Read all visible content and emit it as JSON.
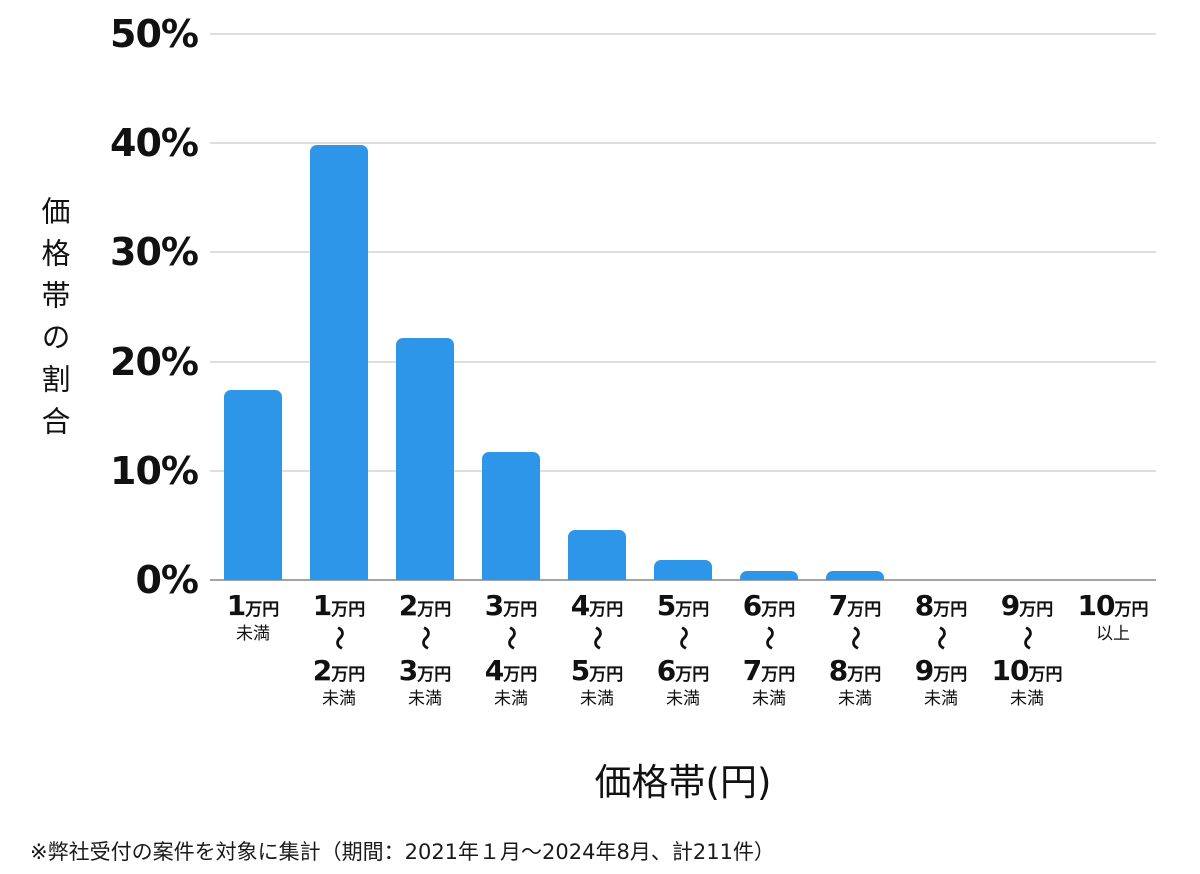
{
  "chart_data": {
    "type": "bar",
    "title": "",
    "xlabel": "価格帯(円)",
    "ylabel": "価格帯の割合",
    "ylim": [
      0,
      50
    ],
    "yticks": [
      50,
      40,
      30,
      20,
      10,
      0
    ],
    "ytick_suffix": "%",
    "grid": "horizontal-light-gray",
    "legend": "none",
    "bar_color": "#2d96e8",
    "categories": [
      {
        "label": "1万円未満",
        "from_num": "1",
        "from_unit": "万円",
        "tilde": "",
        "to_num": "",
        "to_unit": "",
        "qualifier": "未満"
      },
      {
        "label": "1万円〜2万円未満",
        "from_num": "1",
        "from_unit": "万円",
        "tilde": "〜",
        "to_num": "2",
        "to_unit": "万円",
        "qualifier": "未満"
      },
      {
        "label": "2万円〜3万円未満",
        "from_num": "2",
        "from_unit": "万円",
        "tilde": "〜",
        "to_num": "3",
        "to_unit": "万円",
        "qualifier": "未満"
      },
      {
        "label": "3万円〜4万円未満",
        "from_num": "3",
        "from_unit": "万円",
        "tilde": "〜",
        "to_num": "4",
        "to_unit": "万円",
        "qualifier": "未満"
      },
      {
        "label": "4万円〜5万円未満",
        "from_num": "4",
        "from_unit": "万円",
        "tilde": "〜",
        "to_num": "5",
        "to_unit": "万円",
        "qualifier": "未満"
      },
      {
        "label": "5万円〜6万円未満",
        "from_num": "5",
        "from_unit": "万円",
        "tilde": "〜",
        "to_num": "6",
        "to_unit": "万円",
        "qualifier": "未満"
      },
      {
        "label": "6万円〜7万円未満",
        "from_num": "6",
        "from_unit": "万円",
        "tilde": "〜",
        "to_num": "7",
        "to_unit": "万円",
        "qualifier": "未満"
      },
      {
        "label": "7万円〜8万円未満",
        "from_num": "7",
        "from_unit": "万円",
        "tilde": "〜",
        "to_num": "8",
        "to_unit": "万円",
        "qualifier": "未満"
      },
      {
        "label": "8万円〜9万円未満",
        "from_num": "8",
        "from_unit": "万円",
        "tilde": "〜",
        "to_num": "9",
        "to_unit": "万円",
        "qualifier": "未満"
      },
      {
        "label": "9万円〜10万円未満",
        "from_num": "9",
        "from_unit": "万円",
        "tilde": "〜",
        "to_num": "10",
        "to_unit": "万円",
        "qualifier": "未満"
      },
      {
        "label": "10万円以上",
        "from_num": "10",
        "from_unit": "万円",
        "tilde": "",
        "to_num": "",
        "to_unit": "",
        "qualifier": "以上"
      }
    ],
    "values": [
      17.4,
      39.8,
      22.2,
      11.7,
      4.6,
      1.8,
      0.8,
      0.8,
      0,
      0,
      0
    ]
  },
  "footnote": "※弊社受付の案件を対象に集計（期間：2021年１月〜2024年8月、計211件）",
  "colors": {
    "bar": "#2d96e8",
    "gridline": "#dedede",
    "axis_line": "#a3a3a3",
    "text": "#111111"
  }
}
